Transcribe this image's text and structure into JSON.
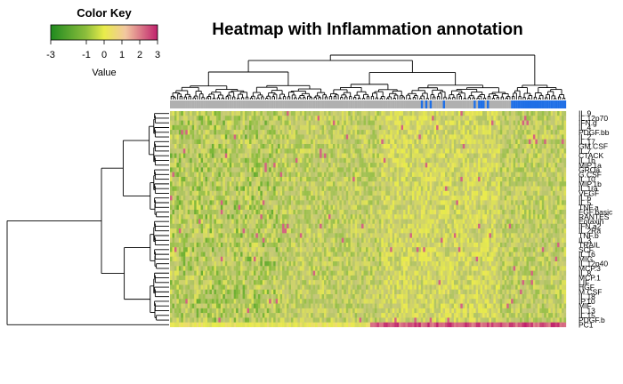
{
  "chart_data": {
    "type": "heatmap",
    "title": "Heatmap with Inflammation annotation",
    "color_key": {
      "title": "Color Key",
      "xlabel": "Value",
      "ticks": [
        -3,
        -1,
        0,
        1,
        2,
        3
      ],
      "range": [
        -3,
        3
      ],
      "colors": [
        "#1f8a1f",
        "#8cbe3c",
        "#e9ec4a",
        "#f2c7a0",
        "#c0206c"
      ]
    },
    "row_labels": [
      "IL.9",
      "IL.12p70",
      "IFN.g",
      "IL.4",
      "PDGF.bb",
      "IL.2",
      "IL.17",
      "GM.CSF",
      "IL.7",
      "CTACK",
      "IL.1b",
      "MIP.1a",
      "GROa",
      "G.CSF",
      "IL.10",
      "MIP.1b",
      "IL.1ra",
      "VEGF",
      "IL.6",
      "IL.5",
      "TNF.a",
      "FGF.basic",
      "RANTES",
      "Eotaxin",
      "IFN.a2",
      "IL.2Ra",
      "TNF.b",
      "IL.3",
      "TRAIL",
      "SCF",
      "IL.16",
      "MIG",
      "IL.12p40",
      "MCP.3",
      "IL.8",
      "MCP.1",
      "LIF",
      "HGF",
      "M.CSF",
      "IL.18",
      "IP.10",
      "MIF",
      "IL.13",
      "IL.15",
      "PDGF.b",
      "PC1"
    ],
    "annotation": {
      "name": "Inflammation",
      "colors": {
        "absent": "#b0b0b0",
        "present": "#1f6fe6"
      }
    },
    "n_columns": 180,
    "n_rows": 46
  }
}
